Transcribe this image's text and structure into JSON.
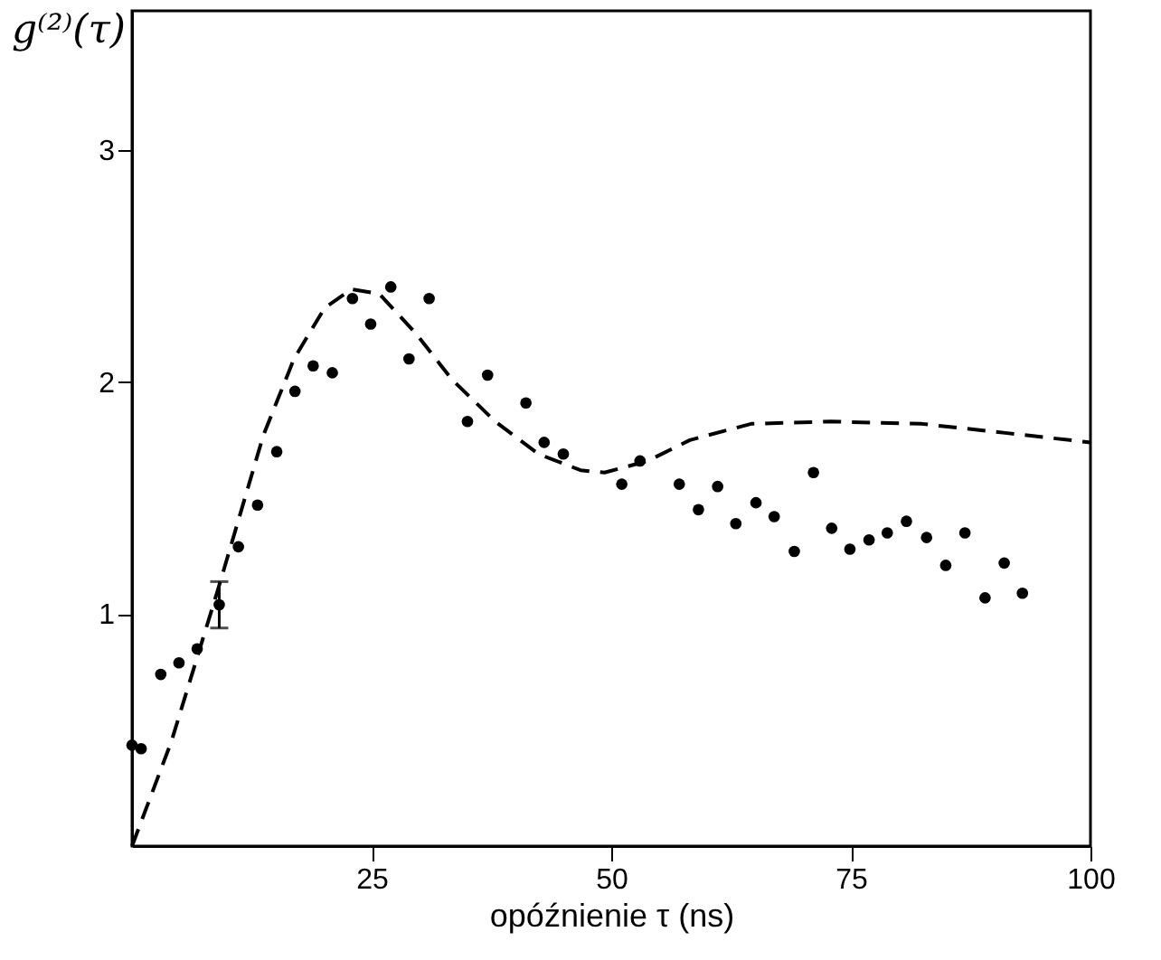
{
  "chart_data": {
    "type": "scatter",
    "xlabel": "opóźnienie τ (ns)",
    "ylabel": "g⁽²⁾(τ)",
    "xlim": [
      0,
      100
    ],
    "ylim": [
      0,
      3.6
    ],
    "xticks": [
      25,
      50,
      75,
      100
    ],
    "yticks": [
      1,
      2,
      3
    ],
    "grid": false,
    "series": [
      {
        "type": "scatter",
        "marker": "circle",
        "color": "#000000",
        "x": [
          0,
          0.95,
          3.0,
          4.9,
          6.8,
          9.1,
          11.1,
          13.1,
          15.1,
          17.0,
          18.9,
          20.9,
          23.0,
          24.9,
          27.0,
          28.9,
          31.0,
          35.0,
          37.1,
          41.1,
          43.0,
          45.0,
          51.1,
          53.0,
          57.1,
          59.1,
          61.1,
          63.0,
          65.1,
          67.0,
          69.1,
          71.1,
          73.0,
          74.9,
          76.9,
          78.8,
          80.8,
          82.9,
          84.9,
          86.9,
          89.0,
          91.0,
          92.9
        ],
        "values": [
          0.435,
          0.42,
          0.74,
          0.79,
          0.85,
          1.04,
          1.29,
          1.47,
          1.7,
          1.96,
          2.07,
          2.04,
          2.36,
          2.25,
          2.41,
          2.1,
          2.36,
          1.83,
          2.03,
          1.91,
          1.74,
          1.69,
          1.56,
          1.66,
          1.56,
          1.45,
          1.55,
          1.39,
          1.48,
          1.42,
          1.27,
          1.61,
          1.37,
          1.28,
          1.32,
          1.35,
          1.4,
          1.33,
          1.21,
          1.35,
          1.07,
          1.22,
          1.09
        ],
        "errors": [
          null,
          null,
          null,
          null,
          null,
          0.1,
          null,
          null,
          null,
          null,
          null,
          null,
          null,
          null,
          null,
          null,
          null,
          null,
          null,
          null,
          null,
          null,
          null,
          null,
          null,
          null,
          null,
          null,
          null,
          null,
          null,
          null,
          null,
          null,
          null,
          null,
          null,
          null,
          null,
          null,
          null,
          null,
          null
        ]
      },
      {
        "type": "line",
        "line_style": "dashed",
        "color": "#000000",
        "x": [
          0,
          4.1,
          9.0,
          13.7,
          16.9,
          20.1,
          22.9,
          25.8,
          29.6,
          33.4,
          37.9,
          42.4,
          46.8,
          49.3,
          53.8,
          58.2,
          64.6,
          72.9,
          82.4,
          91.3,
          100
        ],
        "values": [
          0,
          0.45,
          1.11,
          1.77,
          2.1,
          2.32,
          2.4,
          2.38,
          2.21,
          2.01,
          1.83,
          1.69,
          1.62,
          1.61,
          1.66,
          1.75,
          1.82,
          1.83,
          1.82,
          1.78,
          1.74
        ]
      }
    ]
  }
}
